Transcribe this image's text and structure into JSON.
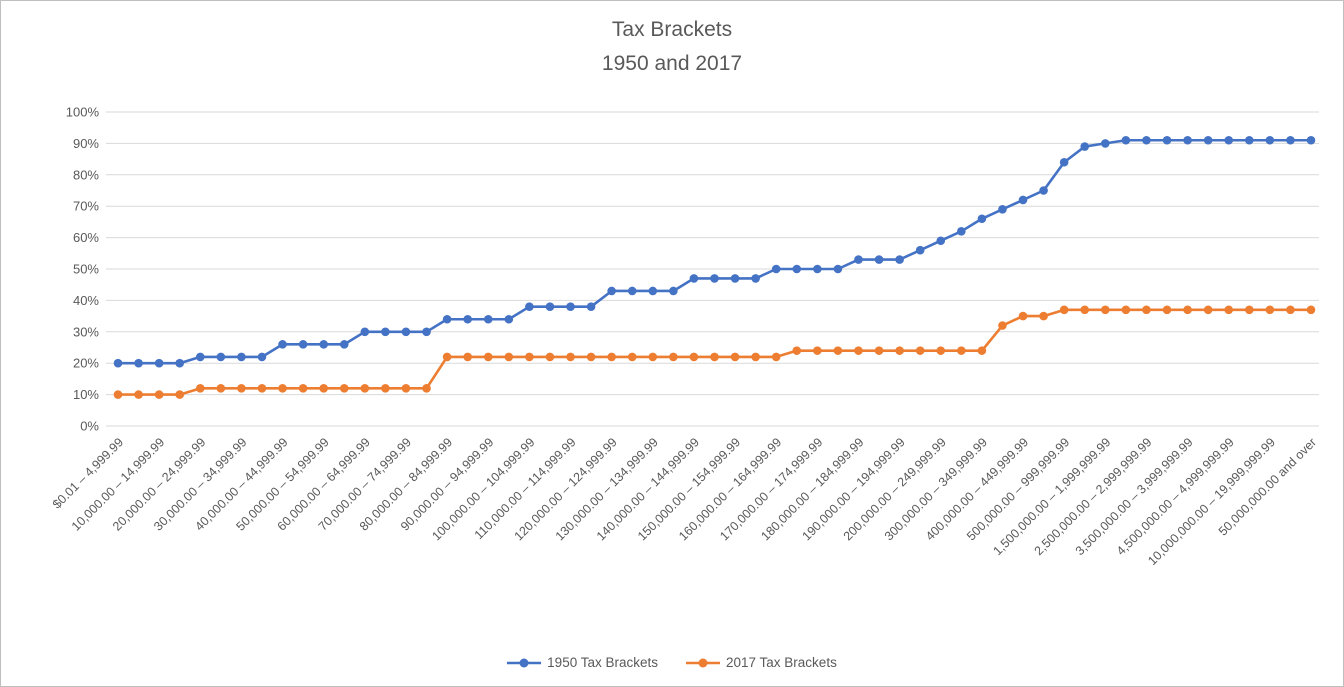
{
  "page": {
    "background": "#ffffff",
    "border_color": "#bfbfbf"
  },
  "chart_data": {
    "type": "line",
    "title": "Tax Brackets",
    "subtitle": "1950 and 2017",
    "text_color": "#595959",
    "gridline_color": "#d9d9d9",
    "grid": true,
    "legend_position": "bottom",
    "ylim": [
      0,
      100
    ],
    "ytick_labels": [
      "0%",
      "10%",
      "20%",
      "30%",
      "40%",
      "50%",
      "60%",
      "70%",
      "80%",
      "90%",
      "100%"
    ],
    "n_points": 59,
    "x_label_every_n_points": 2,
    "x_tick_labels": [
      "$0.01 – 4,999.99",
      "10,000.00 – 14,999.99",
      "20,000.00 – 24,999.99",
      "30,000.00 – 34,999.99",
      "40,000.00 – 44,999.99",
      "50,000.00 – 54,999.99",
      "60,000.00 – 64,999.99",
      "70,000.00 – 74,999.99",
      "80,000.00 – 84,999.99",
      "90,000.00 – 94,999.99",
      "100,000.00 – 104,999.99",
      "110,000.00 – 114,999.99",
      "120,000.00 – 124,999.99",
      "130,000.00 – 134,999.99",
      "140,000.00 – 144,999.99",
      "150,000.00 – 154,999.99",
      "160,000.00 – 164,999.99",
      "170,000.00 – 174,999.99",
      "180,000.00 – 184,999.99",
      "190,000.00 – 194,999.99",
      "200,000.00 – 249,999.99",
      "300,000.00 – 349,999.99",
      "400,000.00 – 449,999.99",
      "500,000.00 – 999,999.99",
      "1,500,000.00 – 1,999,999.99",
      "2,500,000.00 – 2,999,999.99",
      "3,500,000.00 – 3,999,999.99",
      "4,500,000.00 – 4,999,999.99",
      "10,000,000.00 – 19,999,999.99",
      "50,000,000.00 and over"
    ],
    "series": [
      {
        "name": "1950 Tax Brackets",
        "color": "#4472c4",
        "values": [
          20,
          20,
          20,
          20,
          22,
          22,
          22,
          22,
          26,
          26,
          26,
          26,
          30,
          30,
          30,
          30,
          34,
          34,
          34,
          34,
          38,
          38,
          38,
          38,
          43,
          43,
          43,
          43,
          47,
          47,
          47,
          47,
          50,
          50,
          50,
          50,
          53,
          53,
          53,
          56,
          59,
          62,
          66,
          69,
          72,
          75,
          84,
          89,
          90,
          91,
          91,
          91,
          91,
          91,
          91,
          91,
          91,
          91,
          91
        ]
      },
      {
        "name": "2017 Tax Brackets",
        "color": "#ed7d31",
        "values": [
          10,
          10,
          10,
          10,
          12,
          12,
          12,
          12,
          12,
          12,
          12,
          12,
          12,
          12,
          12,
          12,
          22,
          22,
          22,
          22,
          22,
          22,
          22,
          22,
          22,
          22,
          22,
          22,
          22,
          22,
          22,
          22,
          22,
          24,
          24,
          24,
          24,
          24,
          24,
          24,
          24,
          24,
          24,
          32,
          35,
          35,
          37,
          37,
          37,
          37,
          37,
          37,
          37,
          37,
          37,
          37,
          37,
          37,
          37
        ]
      }
    ]
  }
}
